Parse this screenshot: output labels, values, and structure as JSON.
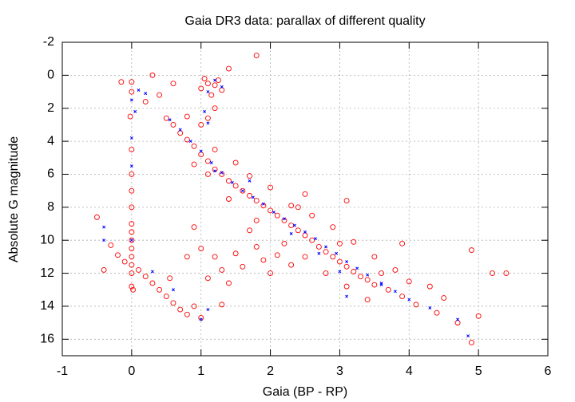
{
  "chart_data": {
    "type": "scatter",
    "title": "Gaia DR3 data: parallax of different quality",
    "x_label": "Gaia (BP - RP)",
    "y_label": "Absolute G magnitude",
    "xlim": [
      -1,
      6
    ],
    "ylim": [
      17,
      -2
    ],
    "xticks": [
      -1,
      0,
      1,
      2,
      3,
      4,
      5,
      6
    ],
    "yticks": [
      -2,
      0,
      2,
      4,
      6,
      8,
      10,
      12,
      14,
      16
    ],
    "grid": true,
    "series": [
      {
        "color": "#ff0000",
        "marker": "circle",
        "x": [
          0.5,
          0.6,
          0.7,
          0.8,
          0.9,
          1.0,
          1.1,
          1.2,
          1.3,
          1.4,
          1.5,
          1.6,
          1.7,
          1.8,
          1.9,
          2.0,
          2.1,
          2.2,
          2.3,
          2.4,
          2.5,
          2.6,
          2.7,
          2.8,
          2.9,
          3.0,
          3.1,
          3.2,
          3.3,
          3.4,
          3.5,
          3.7,
          3.9,
          4.1,
          4.4,
          4.7,
          4.9,
          5.0,
          0.8,
          1.0,
          1.2,
          1.5,
          1.7,
          2.0,
          2.3,
          2.6,
          2.9,
          3.2,
          3.5,
          3.8,
          4.0,
          4.3,
          1.4,
          1.8,
          2.2,
          2.5,
          2.8,
          3.1,
          3.4,
          1.1,
          0.9,
          2.4,
          3.0,
          3.6,
          4.5,
          5.2,
          5.4,
          4.9,
          3.9,
          3.1,
          2.5,
          0.0,
          0.0,
          -0.02,
          0.0,
          0.0,
          0.0,
          0.0,
          0.0,
          0.0,
          0.0,
          0.0,
          0.0,
          0.0,
          0.0,
          0.0,
          0.02,
          -0.15,
          -0.5,
          -0.4,
          -0.3,
          -0.2,
          -0.1,
          0.1,
          0.2,
          0.3,
          0.4,
          0.5,
          0.6,
          0.7,
          0.8,
          0.9,
          0.55,
          1.0,
          1.1,
          1.2,
          1.3,
          1.15,
          1.05,
          1.25,
          1.4,
          1.8,
          1.2,
          1.1,
          0.6,
          0.4,
          0.2,
          0.3,
          1.0,
          1.2,
          1.3,
          1.5,
          1.6,
          1.8,
          1.9,
          2.0,
          2.1,
          2.3,
          1.1,
          1.4,
          0.8,
          0.9,
          1.7,
          1.3,
          1.0
        ],
        "values": [
          2.6,
          3.0,
          3.5,
          3.9,
          4.3,
          4.8,
          5.2,
          5.7,
          6.0,
          6.4,
          6.7,
          7.0,
          7.3,
          7.6,
          7.9,
          8.2,
          8.5,
          8.8,
          9.1,
          9.4,
          9.7,
          10.0,
          10.4,
          10.7,
          11.0,
          11.3,
          11.6,
          11.9,
          12.2,
          12.4,
          12.7,
          13.0,
          13.4,
          13.9,
          14.4,
          15.0,
          16.2,
          14.6,
          2.5,
          3.0,
          4.5,
          5.3,
          6.1,
          6.8,
          7.9,
          8.5,
          9.2,
          10.1,
          11.0,
          11.8,
          12.5,
          12.8,
          7.5,
          8.8,
          10.2,
          11.0,
          12.0,
          12.8,
          13.6,
          6.0,
          5.4,
          8.0,
          10.2,
          12.0,
          13.5,
          12.0,
          12.0,
          10.6,
          10.2,
          7.6,
          7.2,
          0.4,
          1.0,
          2.5,
          4.5,
          6.0,
          7.0,
          8.0,
          9.0,
          9.5,
          10.0,
          10.5,
          11.0,
          11.5,
          12.0,
          12.8,
          13.0,
          0.4,
          8.6,
          11.8,
          10.3,
          10.9,
          11.3,
          11.8,
          12.2,
          12.6,
          13.0,
          13.4,
          13.8,
          14.2,
          14.5,
          14.0,
          12.3,
          0.8,
          0.5,
          0.6,
          0.9,
          1.2,
          0.2,
          0.3,
          -0.4,
          -1.2,
          2.0,
          2.6,
          0.5,
          1.2,
          1.6,
          0.0,
          10.5,
          11.0,
          11.8,
          10.8,
          11.6,
          10.4,
          11.2,
          12.0,
          10.9,
          11.5,
          12.3,
          12.6,
          11.0,
          9.2,
          9.4,
          13.9,
          14.7
        ]
      },
      {
        "color": "#0000ff",
        "marker": "x",
        "x": [
          0.55,
          0.7,
          0.85,
          1.0,
          1.15,
          1.3,
          1.45,
          1.6,
          1.75,
          1.9,
          2.05,
          2.2,
          2.35,
          2.5,
          2.65,
          2.8,
          2.95,
          3.1,
          3.25,
          3.4,
          3.6,
          3.8,
          4.0,
          4.3,
          4.7,
          4.85,
          2.3,
          2.7,
          3.0,
          1.7,
          1.2,
          0.0,
          0.05,
          0.0,
          0.0,
          0.0,
          -0.4,
          -0.4,
          0.3,
          0.6,
          1.0,
          1.1,
          1.1,
          1.2,
          1.3,
          0.2,
          0.1,
          1.1,
          1.05,
          3.1,
          3.6
        ],
        "values": [
          2.7,
          3.3,
          4.0,
          4.6,
          5.3,
          5.9,
          6.5,
          7.0,
          7.4,
          7.8,
          8.3,
          8.7,
          9.1,
          9.5,
          9.9,
          10.4,
          10.8,
          11.3,
          11.7,
          12.1,
          12.6,
          13.1,
          13.6,
          14.1,
          14.8,
          15.8,
          9.6,
          10.8,
          11.9,
          6.4,
          5.8,
          1.5,
          2.2,
          3.8,
          5.5,
          10.0,
          9.2,
          10.0,
          11.9,
          13.0,
          14.8,
          14.2,
          1.0,
          0.3,
          0.7,
          1.1,
          0.9,
          2.9,
          2.2,
          13.4,
          12.7
        ]
      }
    ]
  }
}
